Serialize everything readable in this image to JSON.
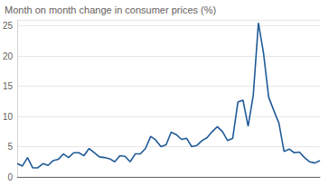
{
  "chart_data": {
    "type": "line",
    "title": "Month on month change in consumer prices (%)",
    "values": [
      2.2,
      1.8,
      3.2,
      1.5,
      1.5,
      2.2,
      1.9,
      2.7,
      2.9,
      3.8,
      3.2,
      4.0,
      4.0,
      3.5,
      4.7,
      4.0,
      3.3,
      3.2,
      3.0,
      2.5,
      3.5,
      3.4,
      2.5,
      3.8,
      3.8,
      4.7,
      6.7,
      6.1,
      5.0,
      5.3,
      7.4,
      7.0,
      6.2,
      6.4,
      5.0,
      5.2,
      6.0,
      6.5,
      7.5,
      8.3,
      7.5,
      6.0,
      6.4,
      12.4,
      12.7,
      8.4,
      13.5,
      25.5,
      20.5,
      13.2,
      11.0,
      8.9,
      4.2,
      4.6,
      4.0,
      4.1,
      3.2,
      2.5,
      2.3,
      2.7
    ],
    "color": "#1f5a97",
    "ylim": [
      0,
      26
    ],
    "yticks": [
      0,
      5,
      10,
      15,
      20,
      25
    ],
    "grid": true,
    "tick_labels": "y"
  }
}
